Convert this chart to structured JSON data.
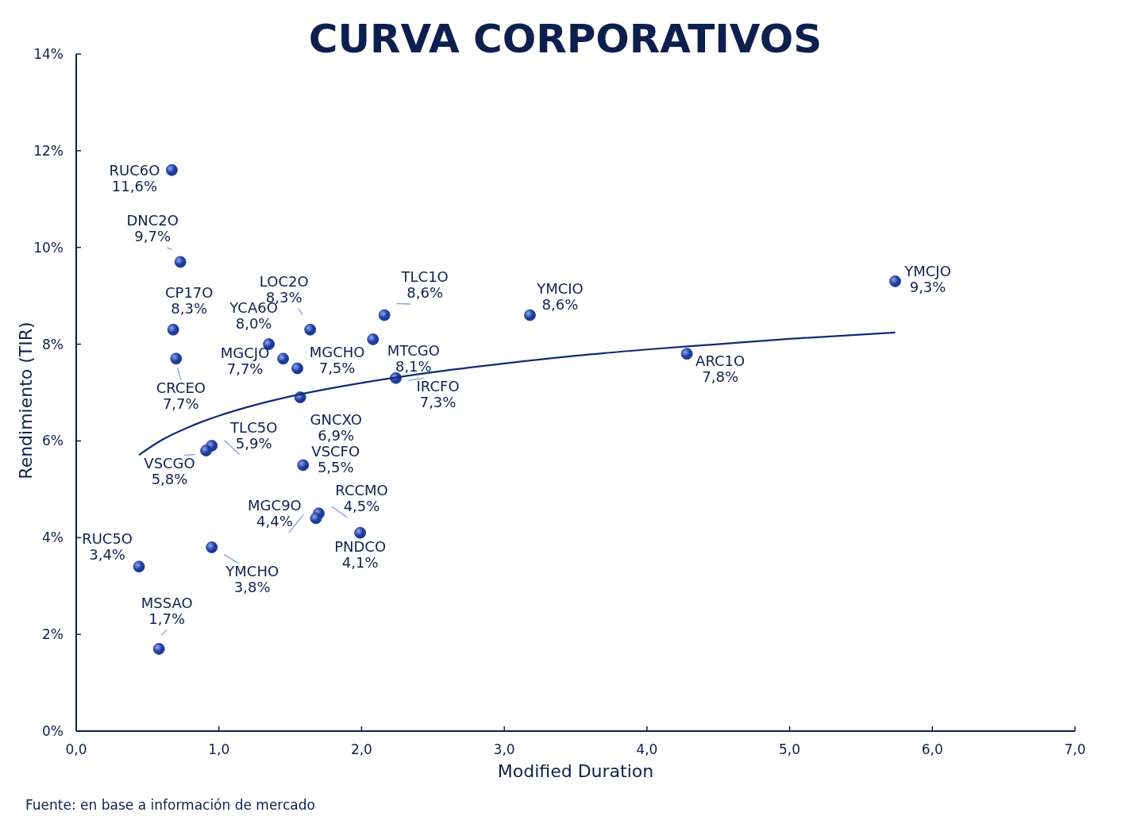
{
  "chart_data": {
    "type": "scatter",
    "title": "CURVA CORPORATIVOS",
    "xlabel": "Modified Duration",
    "ylabel": "Rendimiento (TIR)",
    "xlim": [
      0,
      7
    ],
    "ylim": [
      0,
      14
    ],
    "xticks": [
      {
        "value": 0,
        "label": "0,0"
      },
      {
        "value": 1,
        "label": "1,0"
      },
      {
        "value": 2,
        "label": "2,0"
      },
      {
        "value": 3,
        "label": "3,0"
      },
      {
        "value": 4,
        "label": "4,0"
      },
      {
        "value": 5,
        "label": "5,0"
      },
      {
        "value": 6,
        "label": "6,0"
      },
      {
        "value": 7,
        "label": "7,0"
      }
    ],
    "yticks": [
      {
        "value": 0,
        "label": "0%"
      },
      {
        "value": 2,
        "label": "2%"
      },
      {
        "value": 4,
        "label": "4%"
      },
      {
        "value": 6,
        "label": "6%"
      },
      {
        "value": 8,
        "label": "8%"
      },
      {
        "value": 10,
        "label": "10%"
      },
      {
        "value": 12,
        "label": "12%"
      },
      {
        "value": 14,
        "label": "14%"
      }
    ],
    "grid": false,
    "series": [
      {
        "marker": "circle",
        "color": "#1b3a9a",
        "x": [
          0.67,
          0.73,
          0.68,
          0.7,
          1.64,
          1.35,
          1.45,
          1.55,
          2.16,
          2.08,
          2.24,
          1.57,
          3.18,
          5.74,
          4.28,
          0.95,
          0.91,
          1.59,
          1.7,
          1.68,
          1.99,
          0.44,
          0.95,
          0.58
        ],
        "values": [
          11.6,
          9.7,
          8.3,
          7.7,
          8.3,
          8.0,
          7.7,
          7.5,
          8.6,
          8.1,
          7.3,
          6.9,
          8.6,
          9.3,
          7.8,
          5.9,
          5.8,
          5.5,
          4.5,
          4.4,
          4.1,
          3.4,
          3.8,
          1.7
        ],
        "value_labels": [
          "11,6%",
          "9,7%",
          "8,3%",
          "7,7%",
          "8,3%",
          "8,0%",
          "7,7%",
          "7,5%",
          "8,6%",
          "8,1%",
          "7,3%",
          "6,9%",
          "8,6%",
          "9,3%",
          "7,8%",
          "5,9%",
          "5,8%",
          "5,5%",
          "4,5%",
          "4,4%",
          "4,1%",
          "3,4%",
          "3,8%",
          "1,7%"
        ]
      },
      {
        "type": "line",
        "color": "#0e2b78",
        "x": [
          0.44,
          0.6,
          0.8,
          1.0,
          1.25,
          1.5,
          2,
          2.5,
          3,
          3.5,
          4,
          4.5,
          5,
          5.74
        ],
        "values": [
          5.71,
          6.02,
          6.3,
          6.52,
          6.74,
          6.92,
          7.2,
          7.42,
          7.6,
          7.76,
          7.89,
          8.0,
          8.11,
          8.24
        ]
      }
    ],
    "annotations": [
      {
        "text": "RUC6O",
        "x": 0.67,
        "y": 11.6
      },
      {
        "text": "DNC2O",
        "x": 0.73,
        "y": 9.7
      },
      {
        "text": "CP17O",
        "x": 0.68,
        "y": 8.3
      },
      {
        "text": "CRCEO",
        "x": 0.7,
        "y": 7.7
      },
      {
        "text": "LOC2O",
        "x": 1.64,
        "y": 8.3
      },
      {
        "text": "YCA6O",
        "x": 1.35,
        "y": 8.0
      },
      {
        "text": "MGCJO",
        "x": 1.45,
        "y": 7.7
      },
      {
        "text": "MGCHO",
        "x": 1.55,
        "y": 7.5
      },
      {
        "text": "TLC1O",
        "x": 2.16,
        "y": 8.6
      },
      {
        "text": "MTCGO",
        "x": 2.08,
        "y": 8.1
      },
      {
        "text": "IRCFO",
        "x": 2.24,
        "y": 7.3
      },
      {
        "text": "GNCXO",
        "x": 1.57,
        "y": 6.9
      },
      {
        "text": "YMCIO",
        "x": 3.18,
        "y": 8.6
      },
      {
        "text": "YMCJO",
        "x": 5.74,
        "y": 9.3
      },
      {
        "text": "ARC1O",
        "x": 4.28,
        "y": 7.8
      },
      {
        "text": "TLC5O",
        "x": 0.95,
        "y": 5.9
      },
      {
        "text": "VSCGO",
        "x": 0.91,
        "y": 5.8
      },
      {
        "text": "VSCFO",
        "x": 1.59,
        "y": 5.5
      },
      {
        "text": "RCCMO",
        "x": 1.7,
        "y": 4.5
      },
      {
        "text": "MGC9O",
        "x": 1.68,
        "y": 4.4
      },
      {
        "text": "PNDCO",
        "x": 1.99,
        "y": 4.1
      },
      {
        "text": "RUC5O",
        "x": 0.44,
        "y": 3.4
      },
      {
        "text": "YMCHO",
        "x": 0.95,
        "y": 3.8
      },
      {
        "text": "MSSAO",
        "x": 0.58,
        "y": 1.7
      },
      "Fuente: en base a información de mercado"
    ]
  }
}
